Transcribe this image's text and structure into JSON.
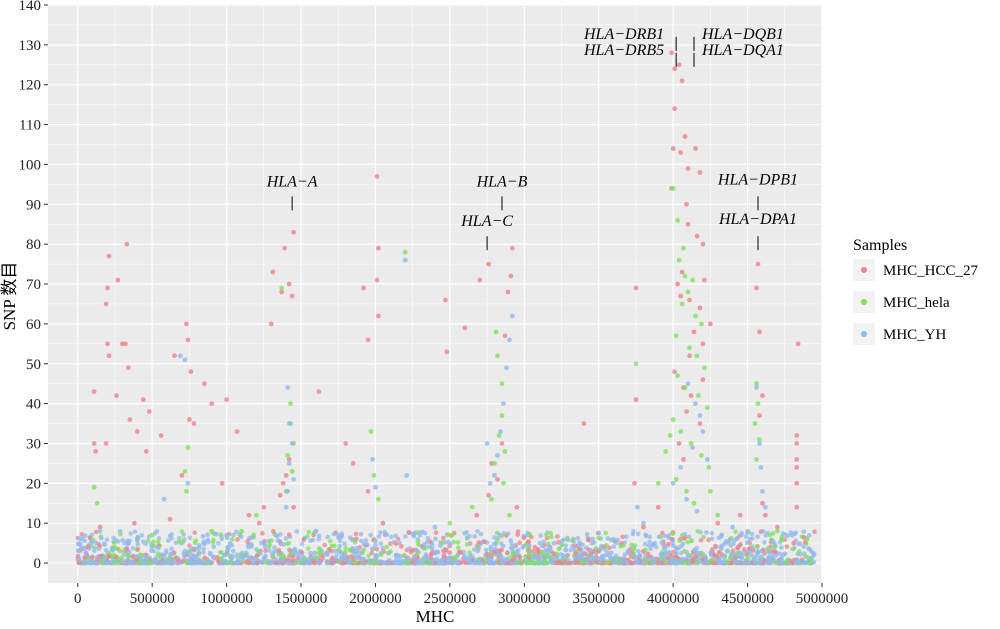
{
  "chart_data": {
    "type": "scatter",
    "xlabel": "MHC",
    "ylabel": "SNP 数目",
    "xlim": [
      -200000,
      5000000
    ],
    "ylim": [
      -5,
      140
    ],
    "x_ticks": [
      0,
      500000,
      1000000,
      1500000,
      2000000,
      2500000,
      3000000,
      3500000,
      4000000,
      4500000,
      5000000
    ],
    "y_ticks": [
      0,
      10,
      20,
      30,
      40,
      50,
      60,
      70,
      80,
      90,
      100,
      110,
      120,
      130,
      140
    ],
    "grid": true,
    "legend": {
      "title": "Samples",
      "placement": "right",
      "entries": [
        "MHC_HCC_27",
        "MHC_hela",
        "MHC_YH"
      ]
    },
    "series": [
      {
        "name": "MHC_HCC_27",
        "color": "#F0828A",
        "points": [
          [
            210000,
            77
          ],
          [
            200000,
            69
          ],
          [
            190000,
            65
          ],
          [
            330000,
            80
          ],
          [
            300000,
            55
          ],
          [
            320000,
            55
          ],
          [
            270000,
            71
          ],
          [
            200000,
            55
          ],
          [
            210000,
            52
          ],
          [
            110000,
            43
          ],
          [
            110000,
            30
          ],
          [
            120000,
            28
          ],
          [
            190000,
            30
          ],
          [
            260000,
            42
          ],
          [
            350000,
            36
          ],
          [
            340000,
            49
          ],
          [
            400000,
            33
          ],
          [
            440000,
            41
          ],
          [
            480000,
            38
          ],
          [
            460000,
            28
          ],
          [
            560000,
            32
          ],
          [
            650000,
            52
          ],
          [
            730000,
            60
          ],
          [
            740000,
            56
          ],
          [
            760000,
            48
          ],
          [
            750000,
            36
          ],
          [
            780000,
            35
          ],
          [
            850000,
            45
          ],
          [
            900000,
            40
          ],
          [
            1000000,
            41
          ],
          [
            970000,
            20
          ],
          [
            1070000,
            33
          ],
          [
            1310000,
            73
          ],
          [
            1300000,
            60
          ],
          [
            1390000,
            79
          ],
          [
            1370000,
            68
          ],
          [
            1450000,
            83
          ],
          [
            1420000,
            70
          ],
          [
            1440000,
            67
          ],
          [
            1620000,
            43
          ],
          [
            1920000,
            69
          ],
          [
            1950000,
            56
          ],
          [
            2010000,
            97
          ],
          [
            2020000,
            79
          ],
          [
            2010000,
            71
          ],
          [
            2020000,
            62
          ],
          [
            2470000,
            66
          ],
          [
            2480000,
            53
          ],
          [
            2600000,
            59
          ],
          [
            2700000,
            71
          ],
          [
            2760000,
            75
          ],
          [
            2920000,
            79
          ],
          [
            2910000,
            72
          ],
          [
            2890000,
            68
          ],
          [
            2870000,
            57
          ],
          [
            3400000,
            35
          ],
          [
            3750000,
            69
          ],
          [
            3750000,
            41
          ],
          [
            3990000,
            128
          ],
          [
            4010000,
            124
          ],
          [
            4040000,
            125
          ],
          [
            4060000,
            121
          ],
          [
            4010000,
            114
          ],
          [
            4000000,
            104
          ],
          [
            4050000,
            103
          ],
          [
            4080000,
            107
          ],
          [
            4100000,
            99
          ],
          [
            3990000,
            94
          ],
          [
            4150000,
            104
          ],
          [
            4180000,
            98
          ],
          [
            4160000,
            82
          ],
          [
            4200000,
            80
          ],
          [
            4210000,
            71
          ],
          [
            4090000,
            90
          ],
          [
            4100000,
            85
          ],
          [
            4060000,
            73
          ],
          [
            4030000,
            70
          ],
          [
            4050000,
            67
          ],
          [
            4110000,
            66
          ],
          [
            4180000,
            64
          ],
          [
            4200000,
            55
          ],
          [
            4250000,
            60
          ],
          [
            4570000,
            75
          ],
          [
            4560000,
            69
          ],
          [
            4580000,
            58
          ],
          [
            4600000,
            42
          ],
          [
            4580000,
            37
          ],
          [
            4840000,
            55
          ],
          [
            4830000,
            32
          ],
          [
            4830000,
            30
          ],
          [
            4830000,
            26
          ],
          [
            4830000,
            24
          ],
          [
            4830000,
            20
          ],
          [
            4830000,
            14
          ],
          [
            4810000,
            5
          ],
          [
            4700000,
            9
          ],
          [
            4600000,
            15
          ],
          [
            4620000,
            12
          ],
          [
            4200000,
            46
          ],
          [
            4070000,
            44
          ],
          [
            4110000,
            52
          ],
          [
            4140000,
            58
          ],
          [
            4010000,
            48
          ],
          [
            4090000,
            38
          ],
          [
            4120000,
            42
          ],
          [
            4180000,
            35
          ],
          [
            4040000,
            30
          ],
          [
            4070000,
            26
          ],
          [
            1400000,
            22
          ],
          [
            1420000,
            26
          ],
          [
            1380000,
            20
          ],
          [
            1360000,
            17
          ],
          [
            1250000,
            14
          ],
          [
            1450000,
            14
          ],
          [
            2780000,
            25
          ],
          [
            2820000,
            21
          ],
          [
            2850000,
            30
          ],
          [
            2760000,
            17
          ],
          [
            2680000,
            12
          ],
          [
            2950000,
            14
          ],
          [
            1800000,
            30
          ],
          [
            1850000,
            25
          ],
          [
            1950000,
            18
          ],
          [
            2050000,
            10
          ],
          [
            1150000,
            12
          ],
          [
            1220000,
            10
          ],
          [
            150000,
            9
          ],
          [
            700000,
            22
          ],
          [
            620000,
            11
          ],
          [
            380000,
            10
          ],
          [
            3740000,
            20
          ],
          [
            3800000,
            9
          ],
          [
            3900000,
            14
          ],
          [
            4300000,
            10
          ],
          [
            4450000,
            12
          ]
        ]
      },
      {
        "name": "MHC_hela",
        "color": "#7FE25A",
        "points": [
          [
            2200000,
            78
          ],
          [
            1370000,
            69
          ],
          [
            2810000,
            58
          ],
          [
            2820000,
            52
          ],
          [
            2850000,
            45
          ],
          [
            4000000,
            94
          ],
          [
            4030000,
            86
          ],
          [
            4070000,
            79
          ],
          [
            4040000,
            76
          ],
          [
            4080000,
            72
          ],
          [
            4130000,
            71
          ],
          [
            4100000,
            68
          ],
          [
            4060000,
            65
          ],
          [
            4150000,
            62
          ],
          [
            4190000,
            60
          ],
          [
            4020000,
            57
          ],
          [
            4110000,
            54
          ],
          [
            4160000,
            52
          ],
          [
            4210000,
            49
          ],
          [
            4030000,
            47
          ],
          [
            4080000,
            44
          ],
          [
            4170000,
            42
          ],
          [
            4230000,
            39
          ],
          [
            4000000,
            36
          ],
          [
            4050000,
            33
          ],
          [
            4120000,
            30
          ],
          [
            4190000,
            27
          ],
          [
            4240000,
            24
          ],
          [
            4020000,
            21
          ],
          [
            4090000,
            18
          ],
          [
            4140000,
            15
          ],
          [
            3750000,
            50
          ],
          [
            4560000,
            45
          ],
          [
            4570000,
            40
          ],
          [
            4550000,
            35
          ],
          [
            4580000,
            31
          ],
          [
            4560000,
            26
          ],
          [
            1430000,
            40
          ],
          [
            1420000,
            35
          ],
          [
            1450000,
            30
          ],
          [
            1410000,
            27
          ],
          [
            1440000,
            23
          ],
          [
            1400000,
            18
          ],
          [
            2850000,
            37
          ],
          [
            2830000,
            32
          ],
          [
            2870000,
            28
          ],
          [
            2800000,
            25
          ],
          [
            2860000,
            20
          ],
          [
            2780000,
            16
          ],
          [
            2900000,
            12
          ],
          [
            740000,
            29
          ],
          [
            720000,
            23
          ],
          [
            730000,
            18
          ],
          [
            110000,
            19
          ],
          [
            130000,
            15
          ],
          [
            1970000,
            33
          ],
          [
            1990000,
            22
          ],
          [
            2020000,
            16
          ],
          [
            3900000,
            20
          ],
          [
            3950000,
            28
          ],
          [
            3980000,
            32
          ],
          [
            4250000,
            18
          ],
          [
            4300000,
            12
          ],
          [
            1200000,
            12
          ],
          [
            1100000,
            8
          ],
          [
            2500000,
            10
          ],
          [
            2650000,
            14
          ],
          [
            500000,
            7
          ],
          [
            900000,
            8
          ],
          [
            4700000,
            8
          ],
          [
            4900000,
            6
          ]
        ]
      },
      {
        "name": "MHC_YH",
        "color": "#91B8EC",
        "points": [
          [
            2200000,
            76
          ],
          [
            690000,
            52
          ],
          [
            720000,
            51
          ],
          [
            4560000,
            44
          ],
          [
            1410000,
            44
          ],
          [
            2920000,
            62
          ],
          [
            2900000,
            56
          ],
          [
            2880000,
            49
          ],
          [
            2860000,
            40
          ],
          [
            2840000,
            33
          ],
          [
            2820000,
            27
          ],
          [
            2800000,
            22
          ],
          [
            1430000,
            35
          ],
          [
            1440000,
            30
          ],
          [
            1420000,
            25
          ],
          [
            1450000,
            21
          ],
          [
            1410000,
            18
          ],
          [
            1400000,
            14
          ],
          [
            4100000,
            45
          ],
          [
            4150000,
            40
          ],
          [
            4180000,
            37
          ],
          [
            4200000,
            33
          ],
          [
            4130000,
            29
          ],
          [
            4230000,
            26
          ],
          [
            4050000,
            24
          ],
          [
            4000000,
            20
          ],
          [
            4090000,
            16
          ],
          [
            4160000,
            13
          ],
          [
            4580000,
            30
          ],
          [
            4590000,
            24
          ],
          [
            4600000,
            18
          ],
          [
            4620000,
            14
          ],
          [
            2210000,
            22
          ],
          [
            580000,
            16
          ],
          [
            740000,
            20
          ],
          [
            1980000,
            26
          ],
          [
            2000000,
            19
          ],
          [
            3760000,
            14
          ],
          [
            3800000,
            10
          ],
          [
            2750000,
            30
          ],
          [
            2770000,
            20
          ],
          [
            150000,
            8
          ],
          [
            400000,
            6
          ],
          [
            1000000,
            7
          ],
          [
            1600000,
            8
          ],
          [
            2400000,
            9
          ],
          [
            3200000,
            5
          ],
          [
            4400000,
            9
          ],
          [
            4800000,
            7
          ]
        ]
      }
    ],
    "annotations": [
      {
        "text": "HLA−A",
        "x": 1440000,
        "y": 92
      },
      {
        "text": "HLA−B",
        "x": 2850000,
        "y": 92
      },
      {
        "text": "HLA−C",
        "x": 2750000,
        "y": 82
      },
      {
        "text": "HLA−DRB1",
        "x": 4020000,
        "y": 132
      },
      {
        "text": "HLA−DRB5",
        "x": 4020000,
        "y": 128
      },
      {
        "text": "HLA−DQB1",
        "x": 4140000,
        "y": 132
      },
      {
        "text": "HLA−DQA1",
        "x": 4140000,
        "y": 128
      },
      {
        "text": "HLA−DPB1",
        "x": 4570000,
        "y": 92
      },
      {
        "text": "HLA−DPA1",
        "x": 4570000,
        "y": 82
      }
    ]
  }
}
